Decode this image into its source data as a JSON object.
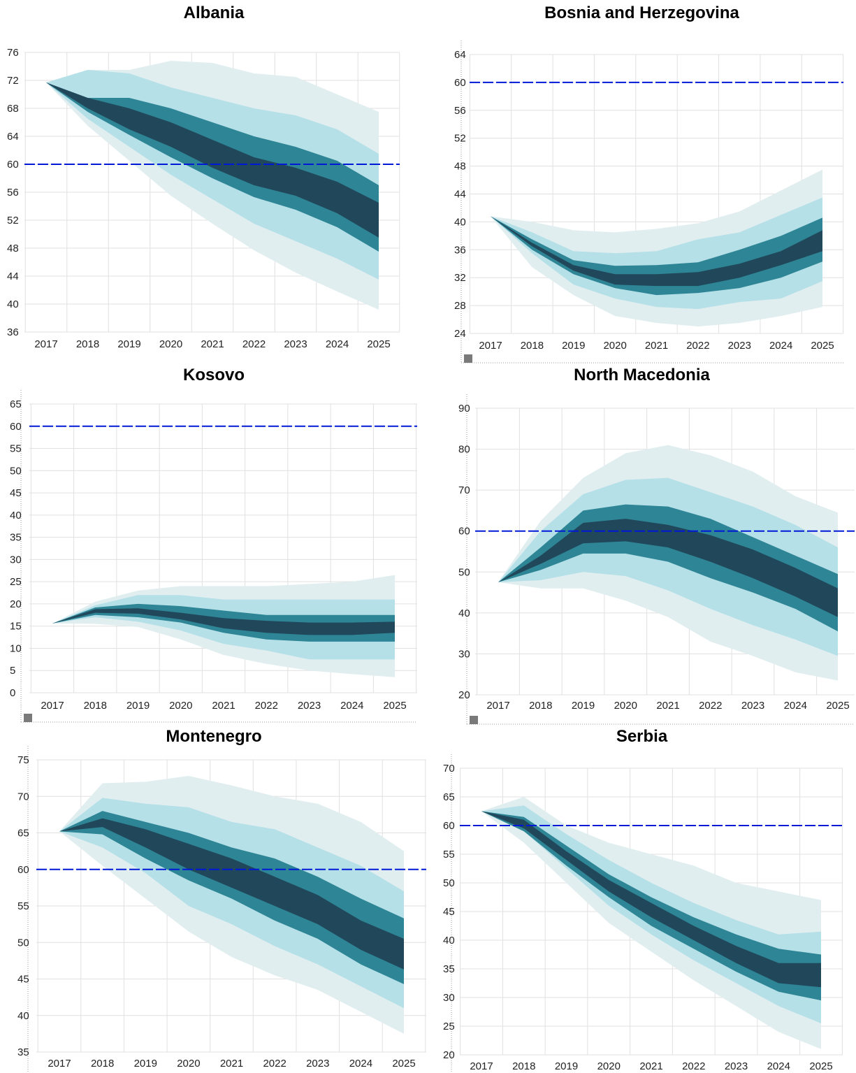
{
  "colors": {
    "outer_band": "#e1eef0",
    "mid_band": "#b6e0e8",
    "inner_band": "#2e8595",
    "core_band": "#21475a",
    "reference_line": "#0019d6",
    "grid": "#e0e0e0",
    "tick_text": "#222222"
  },
  "chart_data": [
    {
      "type": "area",
      "title": "Albania",
      "years": [
        "2017",
        "2018",
        "2019",
        "2020",
        "2021",
        "2022",
        "2023",
        "2024",
        "2025"
      ],
      "ylim": [
        36,
        76
      ],
      "yticks": [
        "76",
        "72",
        "68",
        "64",
        "60",
        "56",
        "52",
        "48",
        "44",
        "40",
        "36"
      ],
      "reference_line": 60,
      "grid": true,
      "bands": {
        "p5": [
          71.7,
          65.5,
          60.5,
          55.5,
          51.5,
          47.7,
          44.5,
          41.8,
          39.2
        ],
        "p15": [
          71.7,
          66.5,
          62.5,
          58.5,
          55.0,
          51.5,
          49.0,
          46.5,
          43.5
        ],
        "p30": [
          71.7,
          67.5,
          64.2,
          61.0,
          58.0,
          55.3,
          53.5,
          51.0,
          47.5
        ],
        "p40": [
          71.7,
          68.0,
          65.0,
          62.5,
          59.5,
          57.0,
          55.5,
          53.0,
          49.5
        ],
        "p60": [
          71.7,
          69.5,
          68.0,
          66.0,
          63.5,
          61.0,
          59.5,
          57.5,
          54.5
        ],
        "p70": [
          71.7,
          69.5,
          69.5,
          68.0,
          66.0,
          64.0,
          62.5,
          60.5,
          57.0
        ],
        "p85": [
          71.7,
          73.5,
          73.0,
          71.0,
          69.5,
          68.0,
          67.0,
          65.0,
          61.5
        ],
        "p95": [
          71.7,
          73.5,
          73.5,
          74.8,
          74.5,
          73.0,
          72.5,
          70.0,
          67.5
        ]
      }
    },
    {
      "type": "area",
      "title": "Bosnia and Herzegovina",
      "years": [
        "2017",
        "2018",
        "2019",
        "2020",
        "2021",
        "2022",
        "2023",
        "2024",
        "2025"
      ],
      "ylim": [
        24,
        64
      ],
      "yticks": [
        "64",
        "60",
        "56",
        "52",
        "48",
        "44",
        "40",
        "36",
        "32",
        "28",
        "24"
      ],
      "reference_line": 60,
      "grid": true,
      "bands": {
        "p5": [
          40.8,
          33.5,
          29.5,
          26.5,
          25.5,
          25.0,
          25.5,
          26.5,
          27.8
        ],
        "p15": [
          40.8,
          35.5,
          31.0,
          29.0,
          27.8,
          27.5,
          28.5,
          29.0,
          31.5
        ],
        "p30": [
          40.8,
          36.0,
          32.5,
          30.5,
          29.5,
          29.8,
          30.5,
          32.0,
          34.3
        ],
        "p40": [
          40.8,
          36.5,
          33.0,
          31.0,
          30.8,
          30.8,
          32.0,
          33.8,
          35.8
        ],
        "p60": [
          40.8,
          37.0,
          33.8,
          32.5,
          32.5,
          32.8,
          34.0,
          35.8,
          38.8
        ],
        "p70": [
          40.8,
          37.5,
          34.5,
          33.7,
          33.8,
          34.2,
          36.0,
          38.0,
          40.6
        ],
        "p85": [
          40.8,
          38.5,
          35.8,
          35.5,
          35.8,
          37.5,
          38.5,
          41.0,
          43.5
        ],
        "p95": [
          40.8,
          40.0,
          38.8,
          38.5,
          39.0,
          39.8,
          41.5,
          44.5,
          47.5
        ]
      }
    },
    {
      "type": "area",
      "title": "Kosovo",
      "years": [
        "2017",
        "2018",
        "2019",
        "2020",
        "2021",
        "2022",
        "2023",
        "2024",
        "2025"
      ],
      "ylim": [
        0,
        65
      ],
      "yticks": [
        "65",
        "60",
        "55",
        "50",
        "45",
        "40",
        "35",
        "30",
        "25",
        "20",
        "15",
        "10",
        "5",
        "0"
      ],
      "reference_line": 60,
      "grid": true,
      "bands": {
        "p5": [
          15.6,
          15.5,
          14.8,
          12.0,
          8.5,
          6.5,
          5.0,
          4.2,
          3.5
        ],
        "p15": [
          15.6,
          17.0,
          16.0,
          14.0,
          11.0,
          9.5,
          7.5,
          7.5,
          7.5
        ],
        "p30": [
          15.6,
          17.5,
          17.0,
          15.8,
          13.5,
          12.0,
          11.5,
          11.5,
          11.5
        ],
        "p40": [
          15.6,
          18.0,
          17.8,
          16.5,
          14.5,
          13.5,
          13.0,
          13.0,
          13.5
        ],
        "p60": [
          15.6,
          18.8,
          19.0,
          18.0,
          16.8,
          16.2,
          15.8,
          15.8,
          16.0
        ],
        "p70": [
          15.6,
          19.2,
          20.0,
          19.5,
          18.5,
          17.5,
          17.5,
          17.5,
          17.5
        ],
        "p85": [
          15.6,
          19.7,
          22.0,
          22.0,
          21.0,
          21.0,
          21.0,
          21.0,
          21.0
        ],
        "p95": [
          15.6,
          20.5,
          23.0,
          24.0,
          24.0,
          24.0,
          24.5,
          25.0,
          26.5
        ]
      }
    },
    {
      "type": "area",
      "title": "North Macedonia",
      "years": [
        "2017",
        "2018",
        "2019",
        "2020",
        "2021",
        "2022",
        "2023",
        "2024",
        "2025"
      ],
      "ylim": [
        20,
        90
      ],
      "yticks": [
        "90",
        "80",
        "70",
        "60",
        "50",
        "40",
        "30",
        "20"
      ],
      "reference_line": 60,
      "grid": true,
      "bands": {
        "p5": [
          47.5,
          46.0,
          46.0,
          43.0,
          39.0,
          33.0,
          29.5,
          25.5,
          23.5
        ],
        "p15": [
          47.5,
          48.0,
          50.0,
          49.0,
          45.5,
          41.0,
          37.0,
          33.5,
          29.5
        ],
        "p30": [
          47.5,
          50.5,
          54.5,
          54.5,
          52.5,
          48.5,
          45.0,
          41.0,
          35.5
        ],
        "p40": [
          47.5,
          52.0,
          57.0,
          57.5,
          56.0,
          52.5,
          48.5,
          44.0,
          39.0
        ],
        "p60": [
          47.5,
          54.0,
          62.0,
          63.0,
          61.5,
          59.0,
          55.5,
          51.0,
          46.0
        ],
        "p70": [
          47.5,
          56.0,
          65.0,
          66.5,
          66.0,
          63.0,
          58.5,
          54.0,
          49.5
        ],
        "p85": [
          47.5,
          60.0,
          69.0,
          72.5,
          73.0,
          69.5,
          66.0,
          61.5,
          56.0
        ],
        "p95": [
          47.5,
          62.5,
          73.0,
          79.0,
          81.0,
          78.5,
          74.5,
          68.5,
          64.5
        ]
      }
    },
    {
      "type": "area",
      "title": "Montenegro",
      "years": [
        "2017",
        "2018",
        "2019",
        "2020",
        "2021",
        "2022",
        "2023",
        "2024",
        "2025"
      ],
      "ylim": [
        35,
        75
      ],
      "yticks": [
        "75",
        "70",
        "65",
        "60",
        "55",
        "50",
        "45",
        "40",
        "35"
      ],
      "reference_line": 60,
      "grid": true,
      "bands": {
        "p5": [
          65.2,
          60.5,
          56.0,
          51.5,
          48.0,
          45.5,
          43.5,
          40.5,
          37.5
        ],
        "p15": [
          65.2,
          63.0,
          59.5,
          55.0,
          52.5,
          49.5,
          47.0,
          44.0,
          41.0
        ],
        "p30": [
          65.2,
          64.8,
          61.5,
          58.5,
          56.0,
          53.0,
          50.5,
          47.0,
          44.3
        ],
        "p40": [
          65.2,
          65.8,
          63.0,
          60.0,
          57.5,
          55.0,
          52.5,
          49.0,
          46.3
        ],
        "p60": [
          65.2,
          67.0,
          65.5,
          63.5,
          61.5,
          59.0,
          56.5,
          53.0,
          50.5
        ],
        "p70": [
          65.2,
          68.0,
          66.5,
          65.0,
          63.0,
          61.5,
          59.0,
          56.0,
          53.3
        ],
        "p85": [
          65.2,
          69.8,
          69.0,
          68.5,
          66.5,
          65.5,
          63.0,
          60.5,
          57.0
        ],
        "p95": [
          65.2,
          71.8,
          72.0,
          72.8,
          71.5,
          70.0,
          69.0,
          66.5,
          62.5
        ]
      }
    },
    {
      "type": "area",
      "title": "Serbia",
      "years": [
        "2017",
        "2018",
        "2019",
        "2020",
        "2021",
        "2022",
        "2023",
        "2024",
        "2025"
      ],
      "ylim": [
        20,
        70
      ],
      "yticks": [
        "70",
        "65",
        "60",
        "55",
        "50",
        "45",
        "40",
        "35",
        "30",
        "25",
        "20"
      ],
      "reference_line": 60,
      "grid": true,
      "bands": {
        "p5": [
          62.5,
          57.0,
          50.0,
          43.0,
          38.0,
          33.0,
          28.5,
          24.0,
          21.0
        ],
        "p15": [
          62.5,
          59.0,
          52.5,
          46.0,
          41.0,
          36.5,
          32.5,
          28.5,
          25.5
        ],
        "p30": [
          62.5,
          59.0,
          53.0,
          47.5,
          42.5,
          38.5,
          34.5,
          31.0,
          29.5
        ],
        "p40": [
          62.5,
          59.5,
          54.0,
          48.5,
          44.0,
          40.0,
          36.0,
          32.5,
          31.8
        ],
        "p60": [
          62.5,
          61.0,
          55.5,
          50.5,
          46.5,
          42.5,
          39.0,
          36.0,
          36.0
        ],
        "p70": [
          62.5,
          61.5,
          56.5,
          51.5,
          47.5,
          44.0,
          41.0,
          38.5,
          37.5
        ],
        "p85": [
          62.5,
          63.5,
          58.5,
          54.0,
          50.0,
          46.5,
          43.5,
          41.0,
          41.5
        ],
        "p95": [
          62.5,
          65.0,
          60.0,
          57.0,
          55.0,
          53.0,
          50.0,
          48.5,
          47.0
        ]
      }
    }
  ]
}
